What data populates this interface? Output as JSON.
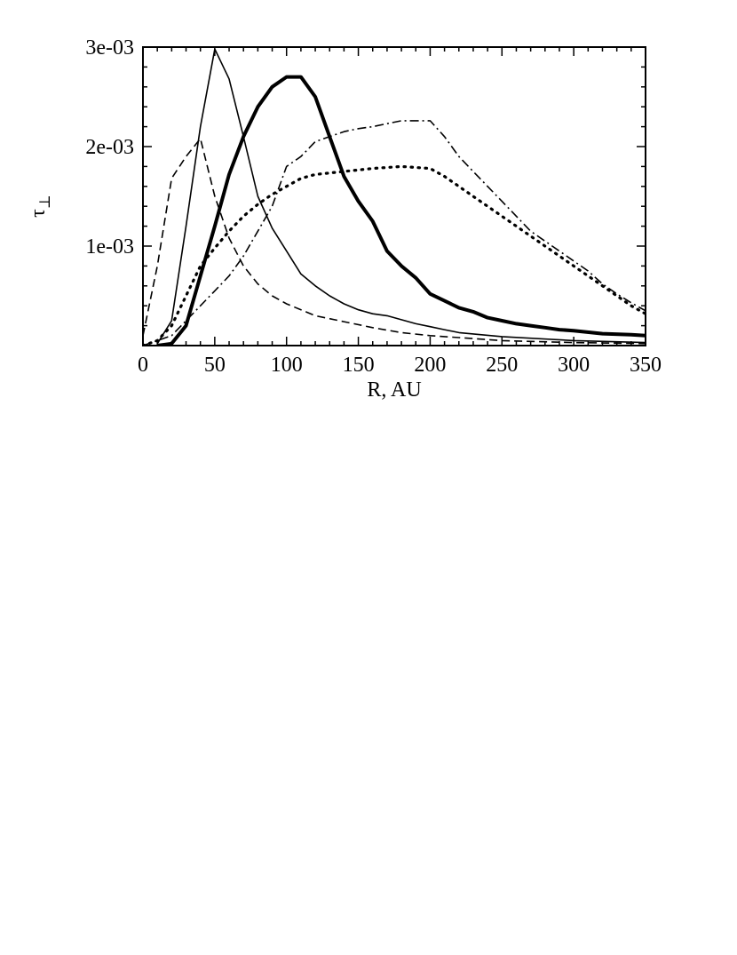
{
  "chart_data": {
    "type": "line",
    "xlabel": "R, AU",
    "ylabel": "τ",
    "ylabel_subscript": "⊥",
    "xlim": [
      0,
      350
    ],
    "ylim": [
      0,
      0.003
    ],
    "x_ticks": [
      0,
      50,
      100,
      150,
      200,
      250,
      300,
      350
    ],
    "x_tick_labels": [
      "0",
      "50",
      "100",
      "150",
      "200",
      "250",
      "300",
      "350"
    ],
    "y_ticks": [
      0.001,
      0.002,
      0.003
    ],
    "y_tick_labels": [
      "1e-03",
      "2e-03",
      "3e-03"
    ],
    "grid": false,
    "legend": false,
    "series": [
      {
        "style": "dashed",
        "color": "#000000",
        "points": [
          [
            0,
            0.0001
          ],
          [
            10,
            0.0008
          ],
          [
            20,
            0.00168
          ],
          [
            30,
            0.0019
          ],
          [
            40,
            0.00208
          ],
          [
            50,
            0.0015
          ],
          [
            60,
            0.00108
          ],
          [
            70,
            0.0008
          ],
          [
            80,
            0.00062
          ],
          [
            90,
            0.0005
          ],
          [
            100,
            0.00042
          ],
          [
            120,
            0.0003
          ],
          [
            140,
            0.00024
          ],
          [
            160,
            0.00018
          ],
          [
            180,
            0.00013
          ],
          [
            200,
            0.0001
          ],
          [
            220,
            8e-05
          ],
          [
            250,
            5e-05
          ],
          [
            300,
            3e-05
          ],
          [
            350,
            2e-05
          ]
        ]
      },
      {
        "style": "solid-thin",
        "color": "#000000",
        "points": [
          [
            10,
            2e-05
          ],
          [
            20,
            0.00025
          ],
          [
            30,
            0.0012
          ],
          [
            40,
            0.0022
          ],
          [
            50,
            0.00298
          ],
          [
            60,
            0.00268
          ],
          [
            70,
            0.0021
          ],
          [
            80,
            0.0015
          ],
          [
            90,
            0.00118
          ],
          [
            100,
            0.00095
          ],
          [
            110,
            0.00072
          ],
          [
            120,
            0.0006
          ],
          [
            130,
            0.0005
          ],
          [
            140,
            0.00042
          ],
          [
            150,
            0.00036
          ],
          [
            160,
            0.00032
          ],
          [
            170,
            0.0003
          ],
          [
            180,
            0.00026
          ],
          [
            190,
            0.00022
          ],
          [
            200,
            0.00019
          ],
          [
            210,
            0.00016
          ],
          [
            220,
            0.00013
          ],
          [
            250,
            9e-05
          ],
          [
            300,
            5e-05
          ],
          [
            350,
            3e-05
          ]
        ]
      },
      {
        "style": "solid-thick",
        "color": "#000000",
        "points": [
          [
            10,
            0
          ],
          [
            20,
            2e-05
          ],
          [
            30,
            0.0002
          ],
          [
            40,
            0.0007
          ],
          [
            50,
            0.0012
          ],
          [
            60,
            0.00172
          ],
          [
            70,
            0.0021
          ],
          [
            80,
            0.0024
          ],
          [
            90,
            0.0026
          ],
          [
            100,
            0.0027
          ],
          [
            110,
            0.0027
          ],
          [
            120,
            0.0025
          ],
          [
            130,
            0.0021
          ],
          [
            140,
            0.0017
          ],
          [
            150,
            0.00145
          ],
          [
            160,
            0.00125
          ],
          [
            170,
            0.00095
          ],
          [
            180,
            0.0008
          ],
          [
            190,
            0.00068
          ],
          [
            200,
            0.00052
          ],
          [
            210,
            0.00045
          ],
          [
            220,
            0.00038
          ],
          [
            230,
            0.00034
          ],
          [
            240,
            0.00028
          ],
          [
            250,
            0.00025
          ],
          [
            260,
            0.00022
          ],
          [
            270,
            0.0002
          ],
          [
            280,
            0.00018
          ],
          [
            290,
            0.00016
          ],
          [
            300,
            0.00015
          ],
          [
            320,
            0.00012
          ],
          [
            340,
            0.00011
          ],
          [
            350,
            0.0001
          ]
        ]
      },
      {
        "style": "dotted",
        "color": "#000000",
        "points": [
          [
            0,
            0
          ],
          [
            10,
            5e-05
          ],
          [
            20,
            0.0002
          ],
          [
            30,
            0.0005
          ],
          [
            40,
            0.0008
          ],
          [
            50,
            0.00098
          ],
          [
            60,
            0.00115
          ],
          [
            70,
            0.0013
          ],
          [
            80,
            0.00142
          ],
          [
            90,
            0.00152
          ],
          [
            100,
            0.0016
          ],
          [
            110,
            0.00168
          ],
          [
            120,
            0.00172
          ],
          [
            140,
            0.00175
          ],
          [
            160,
            0.00178
          ],
          [
            180,
            0.0018
          ],
          [
            200,
            0.00178
          ],
          [
            210,
            0.0017
          ],
          [
            220,
            0.0016
          ],
          [
            230,
            0.0015
          ],
          [
            240,
            0.0014
          ],
          [
            250,
            0.0013
          ],
          [
            260,
            0.0012
          ],
          [
            270,
            0.0011
          ],
          [
            280,
            0.001
          ],
          [
            290,
            0.0009
          ],
          [
            300,
            0.0008
          ],
          [
            310,
            0.0007
          ],
          [
            320,
            0.0006
          ],
          [
            330,
            0.0005
          ],
          [
            340,
            0.0004
          ],
          [
            350,
            0.00032
          ]
        ]
      },
      {
        "style": "dash-dot",
        "color": "#000000",
        "points": [
          [
            0,
            0
          ],
          [
            20,
            0.0001
          ],
          [
            30,
            0.00025
          ],
          [
            40,
            0.0004
          ],
          [
            50,
            0.00055
          ],
          [
            60,
            0.0007
          ],
          [
            70,
            0.0009
          ],
          [
            80,
            0.00115
          ],
          [
            90,
            0.0014
          ],
          [
            100,
            0.0018
          ],
          [
            110,
            0.0019
          ],
          [
            120,
            0.00205
          ],
          [
            130,
            0.0021
          ],
          [
            140,
            0.00215
          ],
          [
            150,
            0.00218
          ],
          [
            160,
            0.0022
          ],
          [
            170,
            0.00223
          ],
          [
            180,
            0.00226
          ],
          [
            190,
            0.00226
          ],
          [
            200,
            0.00226
          ],
          [
            210,
            0.0021
          ],
          [
            220,
            0.0019
          ],
          [
            230,
            0.00175
          ],
          [
            240,
            0.0016
          ],
          [
            250,
            0.00145
          ],
          [
            260,
            0.0013
          ],
          [
            270,
            0.00115
          ],
          [
            280,
            0.00105
          ],
          [
            290,
            0.00095
          ],
          [
            300,
            0.00085
          ],
          [
            310,
            0.00075
          ],
          [
            320,
            0.00062
          ],
          [
            330,
            0.00052
          ],
          [
            340,
            0.00043
          ],
          [
            350,
            0.00035
          ]
        ]
      }
    ]
  }
}
